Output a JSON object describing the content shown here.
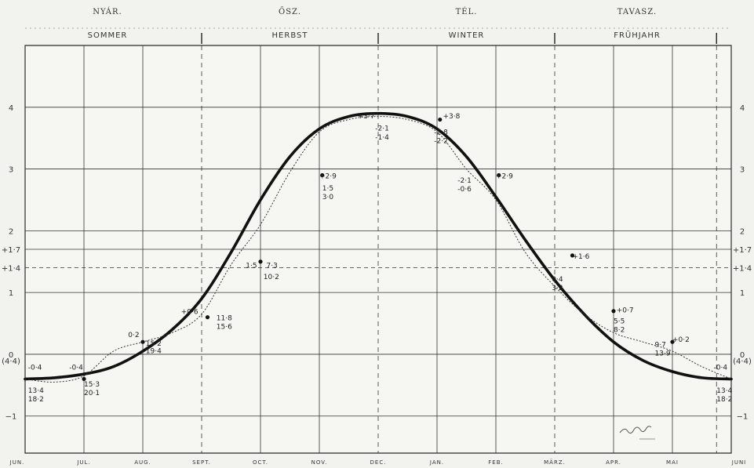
{
  "chart_data": {
    "type": "line",
    "seasons_hu": [
      "NYÁR.",
      "ŐSZ.",
      "TÉL.",
      "TAVASZ."
    ],
    "seasons_de": [
      "SOMMER",
      "HERBST",
      "WINTER",
      "FRÜHJAHR"
    ],
    "months": [
      "JUN.",
      "JUL.",
      "AUG.",
      "SEPT.",
      "OCT.",
      "NOV.",
      "DEC.",
      "JAN.",
      "FEB.",
      "MÄRZ.",
      "APR.",
      "MAI",
      "JUNI"
    ],
    "ylim": [
      -1.6,
      5.0
    ],
    "yticks": [
      {
        "value": 4,
        "left": "4",
        "right": "4"
      },
      {
        "value": 3,
        "left": "3",
        "right": "3"
      },
      {
        "value": 2,
        "left": "2",
        "right": "2"
      },
      {
        "value": 1.7,
        "left": "+1·7",
        "right": "+1·7"
      },
      {
        "value": 1.4,
        "left": "+1·4",
        "right": "+1·4"
      },
      {
        "value": 1,
        "left": "1",
        "right": "1"
      },
      {
        "value": 0,
        "left": "0",
        "right": "0"
      },
      {
        "value": -1,
        "left": "−1",
        "right": "−1"
      }
    ],
    "y_extra_labels": [
      {
        "value": -0.1,
        "left": "(4·4)",
        "right": "(4·4)"
      }
    ],
    "series": [
      {
        "style": "thick",
        "x": [
          0,
          0.5,
          1,
          1.5,
          2,
          2.5,
          3,
          3.5,
          4,
          4.5,
          5,
          5.5,
          6,
          6.5,
          7,
          7.5,
          8,
          8.5,
          9,
          9.5,
          10,
          10.5,
          11,
          11.5,
          12
        ],
        "y": [
          -0.4,
          -0.38,
          -0.32,
          -0.2,
          0.05,
          0.4,
          0.9,
          1.65,
          2.5,
          3.2,
          3.65,
          3.85,
          3.9,
          3.85,
          3.65,
          3.2,
          2.55,
          1.85,
          1.2,
          0.65,
          0.2,
          -0.1,
          -0.28,
          -0.38,
          -0.4
        ]
      },
      {
        "style": "dotted",
        "x": [
          0,
          0.5,
          1,
          1.5,
          2,
          2.5,
          3,
          3.5,
          4,
          4.5,
          5,
          5.5,
          6,
          6.5,
          7,
          7.5,
          8,
          8.5,
          9,
          9.5,
          10,
          10.5,
          11,
          11.5,
          12
        ],
        "y": [
          -0.4,
          -0.45,
          -0.35,
          0.05,
          0.2,
          0.35,
          0.65,
          1.45,
          2.1,
          2.95,
          3.6,
          3.8,
          3.85,
          3.8,
          3.6,
          3.0,
          2.5,
          1.65,
          1.1,
          0.65,
          0.35,
          0.2,
          0.05,
          -0.2,
          -0.4
        ]
      }
    ],
    "points": [
      {
        "x": 1,
        "y": -0.4
      },
      {
        "x": 2,
        "y": 0.2
      },
      {
        "x": 3.1,
        "y": 0.6
      },
      {
        "x": 4,
        "y": 1.5
      },
      {
        "x": 5.05,
        "y": 2.9
      },
      {
        "x": 7.05,
        "y": 3.8
      },
      {
        "x": 8.05,
        "y": 2.9
      },
      {
        "x": 9.3,
        "y": 1.6
      },
      {
        "x": 10,
        "y": 0.7
      },
      {
        "x": 11,
        "y": 0.2
      }
    ],
    "annotations": [
      {
        "x": 0.05,
        "y": -0.25,
        "text": "-0·4"
      },
      {
        "x": 0.05,
        "y": -0.62,
        "text": "13·4"
      },
      {
        "x": 0.05,
        "y": -0.76,
        "text": "18·2"
      },
      {
        "x": 0.75,
        "y": -0.25,
        "text": "-0·4"
      },
      {
        "x": 1.0,
        "y": -0.52,
        "text": "15·3"
      },
      {
        "x": 1.0,
        "y": -0.66,
        "text": "20·1"
      },
      {
        "x": 1.75,
        "y": 0.28,
        "text": "0·2"
      },
      {
        "x": 2.05,
        "y": 0.14,
        "text": "15·2"
      },
      {
        "x": 2.05,
        "y": 0.02,
        "text": "19·4"
      },
      {
        "x": 2.65,
        "y": 0.65,
        "text": "+0·6"
      },
      {
        "x": 3.25,
        "y": 0.55,
        "text": "11·8"
      },
      {
        "x": 3.25,
        "y": 0.41,
        "text": "15·6"
      },
      {
        "x": 3.75,
        "y": 1.4,
        "text": "1·5"
      },
      {
        "x": 4.1,
        "y": 1.4,
        "text": "7·3"
      },
      {
        "x": 4.05,
        "y": 1.22,
        "text": "10·2"
      },
      {
        "x": 5.0,
        "y": 2.85,
        "text": "+2·9"
      },
      {
        "x": 5.05,
        "y": 2.65,
        "text": "1·5"
      },
      {
        "x": 5.05,
        "y": 2.51,
        "text": "3·0"
      },
      {
        "x": 5.65,
        "y": 3.82,
        "text": "+3·7"
      },
      {
        "x": 5.95,
        "y": 3.62,
        "text": "-2·1"
      },
      {
        "x": 5.95,
        "y": 3.48,
        "text": "-1·4"
      },
      {
        "x": 7.1,
        "y": 3.82,
        "text": "+3·8"
      },
      {
        "x": 6.95,
        "y": 3.56,
        "text": "-2·8"
      },
      {
        "x": 6.95,
        "y": 3.42,
        "text": "-2·2"
      },
      {
        "x": 7.35,
        "y": 2.78,
        "text": "-2·1"
      },
      {
        "x": 7.35,
        "y": 2.64,
        "text": "-0·6"
      },
      {
        "x": 8.0,
        "y": 2.85,
        "text": "+2·9"
      },
      {
        "x": 9.3,
        "y": 1.55,
        "text": "+1·6"
      },
      {
        "x": 8.95,
        "y": 1.18,
        "text": "0·4"
      },
      {
        "x": 8.95,
        "y": 1.04,
        "text": "3·2"
      },
      {
        "x": 10.05,
        "y": 0.68,
        "text": "+0·7"
      },
      {
        "x": 10.0,
        "y": 0.5,
        "text": "5·5"
      },
      {
        "x": 10.0,
        "y": 0.36,
        "text": "8·2"
      },
      {
        "x": 11.0,
        "y": 0.2,
        "text": "+0·2"
      },
      {
        "x": 10.7,
        "y": 0.12,
        "text": "9·7"
      },
      {
        "x": 10.7,
        "y": -0.02,
        "text": "13·9"
      },
      {
        "x": 11.7,
        "y": -0.25,
        "text": "-0·4"
      },
      {
        "x": 11.75,
        "y": -0.62,
        "text": "13·4"
      },
      {
        "x": 11.75,
        "y": -0.76,
        "text": "18·2"
      }
    ],
    "grid": true
  }
}
